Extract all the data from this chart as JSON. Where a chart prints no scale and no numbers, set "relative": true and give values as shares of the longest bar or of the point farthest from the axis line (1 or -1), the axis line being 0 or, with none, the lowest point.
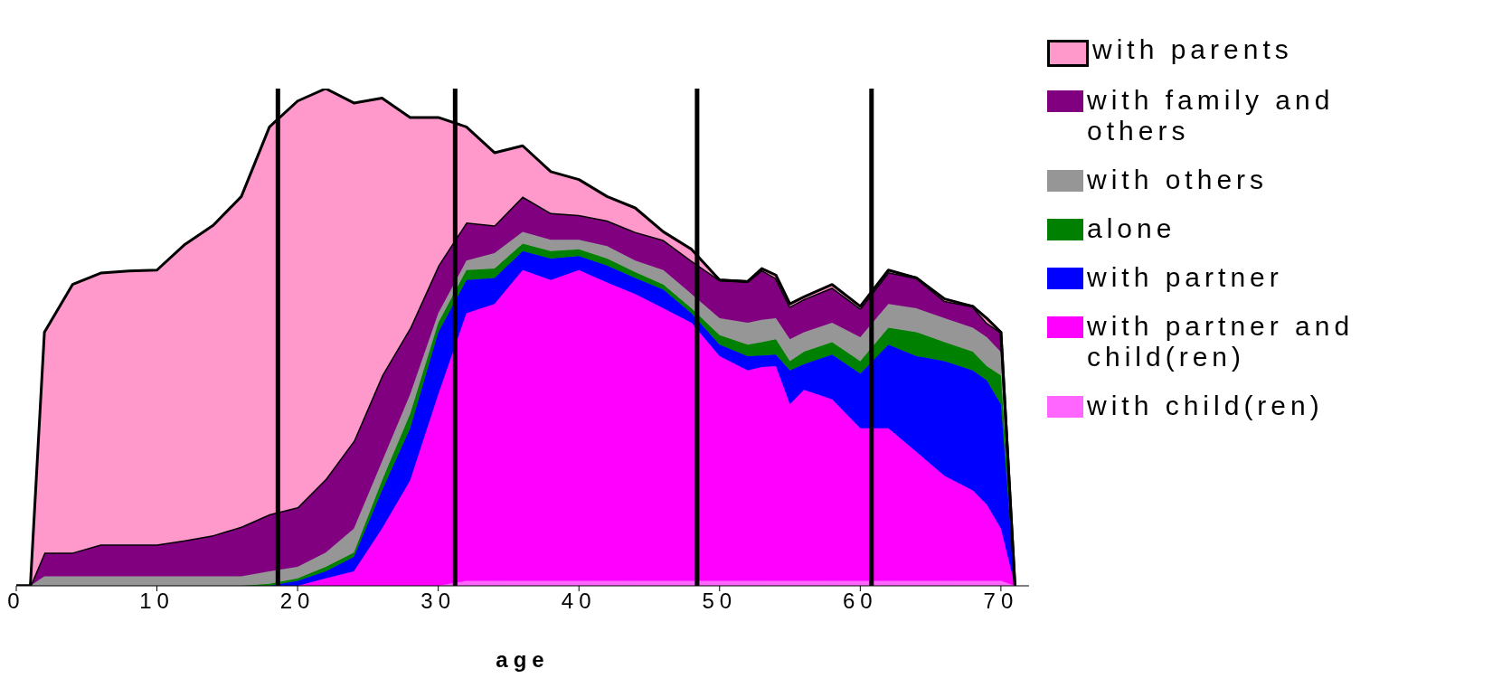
{
  "chart_data": {
    "type": "area",
    "stacked": true,
    "relative": true,
    "xlabel": "age",
    "xlim": [
      0,
      72
    ],
    "xticks": [
      0,
      10,
      20,
      30,
      40,
      50,
      60,
      70
    ],
    "legend": "right",
    "x": [
      0,
      1,
      2,
      4,
      6,
      8,
      10,
      12,
      14,
      16,
      18,
      20,
      22,
      24,
      26,
      28,
      30,
      32,
      34,
      36,
      38,
      40,
      42,
      44,
      46,
      48,
      50,
      52,
      53,
      54,
      55,
      56,
      58,
      60,
      62,
      64,
      66,
      68,
      69,
      70,
      71
    ],
    "series": [
      {
        "name": "with child(ren)",
        "color": "#ff66ff",
        "values": [
          0,
          0,
          0,
          0,
          0,
          0,
          0,
          0,
          0,
          0,
          0,
          0,
          0,
          0,
          0,
          0,
          0,
          0.01,
          0.01,
          0.01,
          0.01,
          0.01,
          0.01,
          0.01,
          0.01,
          0.01,
          0.01,
          0.01,
          0.01,
          0.01,
          0.01,
          0.01,
          0.01,
          0.01,
          0.01,
          0.01,
          0.01,
          0.01,
          0.01,
          0.01,
          0
        ]
      },
      {
        "name": "with partner and child(ren)",
        "color": "#ff00ff",
        "values": [
          0,
          0,
          0,
          0,
          0,
          0,
          0,
          0,
          0,
          0,
          0,
          0,
          0.015,
          0.029,
          0.115,
          0.212,
          0.385,
          0.538,
          0.557,
          0.625,
          0.605,
          0.625,
          0.6,
          0.577,
          0.548,
          0.519,
          0.452,
          0.423,
          0.43,
          0.432,
          0.355,
          0.384,
          0.365,
          0.307,
          0.307,
          0.259,
          0.211,
          0.182,
          0.153,
          0.105,
          0
        ]
      },
      {
        "name": "with partner",
        "color": "#0000ff",
        "values": [
          0,
          0,
          0,
          0,
          0,
          0,
          0,
          0,
          0,
          0,
          0,
          0.01,
          0.014,
          0.029,
          0.077,
          0.105,
          0.125,
          0.067,
          0.052,
          0.038,
          0.043,
          0.028,
          0.034,
          0.032,
          0.038,
          0.019,
          0.023,
          0.029,
          0.023,
          0.023,
          0.068,
          0.052,
          0.09,
          0.11,
          0.168,
          0.193,
          0.231,
          0.241,
          0.25,
          0.25,
          0
        ]
      },
      {
        "name": "alone",
        "color": "#008000",
        "values": [
          0,
          0,
          0,
          0,
          0,
          0,
          0,
          0,
          0,
          0,
          0.004,
          0.005,
          0.009,
          0.009,
          0.02,
          0.029,
          0.019,
          0.02,
          0.019,
          0.015,
          0.015,
          0.014,
          0.014,
          0.012,
          0.01,
          0.01,
          0.019,
          0.023,
          0.027,
          0.031,
          0.019,
          0.025,
          0.025,
          0.025,
          0.034,
          0.048,
          0.038,
          0.038,
          0.029,
          0.058,
          0
        ]
      },
      {
        "name": "with others",
        "color": "#969696",
        "values": [
          0,
          0,
          0.019,
          0.019,
          0.019,
          0.019,
          0.019,
          0.019,
          0.019,
          0.019,
          0.025,
          0.023,
          0.029,
          0.048,
          0.038,
          0.039,
          0.019,
          0.019,
          0.031,
          0.024,
          0.023,
          0.019,
          0.025,
          0.023,
          0.029,
          0.029,
          0.034,
          0.044,
          0.045,
          0.042,
          0.044,
          0.039,
          0.039,
          0.048,
          0.048,
          0.048,
          0.048,
          0.048,
          0.058,
          0.047,
          0
        ]
      },
      {
        "name": "with family and others",
        "color": "#800080",
        "values": [
          0,
          0,
          0.048,
          0.048,
          0.064,
          0.064,
          0.064,
          0.073,
          0.083,
          0.1,
          0.115,
          0.12,
          0.148,
          0.177,
          0.173,
          0.134,
          0.096,
          0.077,
          0.056,
          0.071,
          0.054,
          0.05,
          0.052,
          0.058,
          0.061,
          0.067,
          0.077,
          0.083,
          0.1,
          0.081,
          0.066,
          0.067,
          0.071,
          0.058,
          0.064,
          0.061,
          0.035,
          0.043,
          0.029,
          0.04,
          0
        ]
      },
      {
        "name": "with parents",
        "color": "#ff99cc",
        "values": [
          0,
          0,
          0.443,
          0.539,
          0.546,
          0.55,
          0.552,
          0.595,
          0.623,
          0.664,
          0.779,
          0.817,
          0.785,
          0.679,
          0.558,
          0.423,
          0.298,
          0.192,
          0.146,
          0.102,
          0.083,
          0.071,
          0.048,
          0.048,
          0.016,
          0.023,
          0,
          0,
          0.003,
          0.006,
          0.005,
          0.004,
          0.006,
          0.004,
          0.004,
          0,
          0.004,
          0,
          0.009,
          0,
          0
        ]
      }
    ],
    "ref_lines": [
      {
        "axis": "x",
        "value": 18.6,
        "color": "#000000"
      },
      {
        "axis": "x",
        "value": 31.2,
        "color": "#000000"
      },
      {
        "axis": "x",
        "value": 48.4,
        "color": "#000000"
      },
      {
        "axis": "x",
        "value": 60.8,
        "color": "#000000"
      }
    ]
  }
}
